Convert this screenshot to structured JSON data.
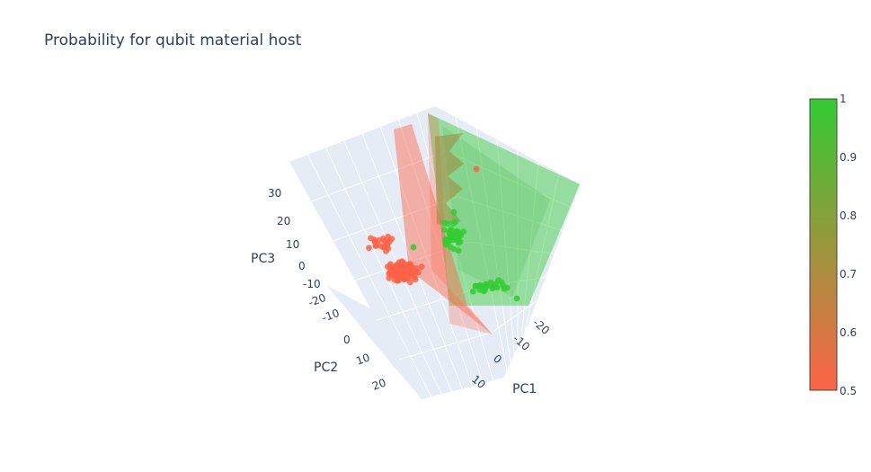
{
  "chart_data": {
    "type": "scatter",
    "title": "Probability for qubit material host",
    "axes": {
      "x": {
        "label": "PC1",
        "ticks": [
          "-20",
          "-10",
          "0",
          "10"
        ]
      },
      "y": {
        "label": "PC2",
        "ticks": [
          "-20",
          "-10",
          "0",
          "10",
          "20"
        ]
      },
      "z": {
        "label": "PC3",
        "ticks": [
          "-10",
          "0",
          "10",
          "20",
          "30"
        ]
      }
    },
    "colorbar": {
      "ticks": [
        "1",
        "0.9",
        "0.8",
        "0.7",
        "0.6",
        "0.5"
      ],
      "range": [
        0.5,
        1
      ],
      "color_high": "#33cc33",
      "color_low": "#ff6347"
    },
    "series": [
      {
        "value": 0.5,
        "color": "#ff6347",
        "approx_points": 150
      },
      {
        "value": 1.0,
        "color": "#33cc33",
        "approx_points": 70
      }
    ],
    "decision_surfaces": [
      {
        "value": 0.5,
        "color": "#ff6347"
      },
      {
        "value": 1.0,
        "color": "#33cc33"
      }
    ],
    "scene": {
      "background": "#e5ecf6",
      "grid": true
    }
  }
}
